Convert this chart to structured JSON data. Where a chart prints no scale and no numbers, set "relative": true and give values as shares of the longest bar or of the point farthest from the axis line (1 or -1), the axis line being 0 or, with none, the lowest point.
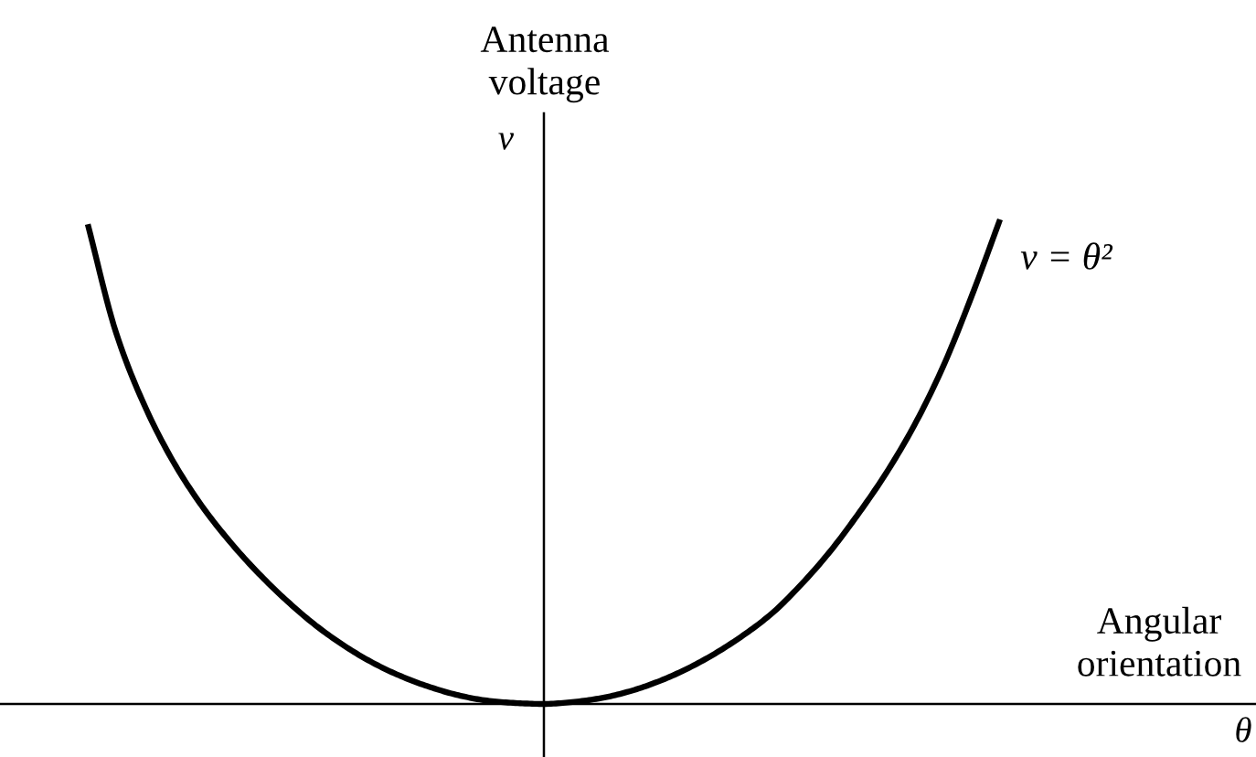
{
  "chart_data": {
    "type": "line",
    "relative": true,
    "xlabel": "Angular\norientation",
    "ylabel": "Antenna\nvoltage",
    "annotations": [
      "v",
      "θ"
    ],
    "categories": [
      null,
      null,
      null,
      null,
      null,
      null,
      null,
      null,
      null,
      null,
      null,
      null,
      null,
      null,
      null,
      null,
      null,
      null,
      null,
      null,
      null,
      null,
      null,
      null,
      null,
      null,
      null,
      null,
      null,
      null,
      null,
      null,
      null
    ],
    "series": [
      {
        "name": "v = θ²",
        "color": "#000000",
        "values": [
          0.99,
          0.765,
          0.615,
          0.5,
          0.409,
          0.334,
          0.269,
          0.212,
          0.162,
          0.12,
          0.085,
          0.057,
          0.035,
          0.018,
          0.007,
          0.002,
          0,
          0.004,
          0.012,
          0.026,
          0.046,
          0.072,
          0.104,
          0.142,
          0.187,
          0.245,
          0.312,
          0.39,
          0.476,
          0.576,
          0.696,
          0.841,
          1
        ]
      }
    ]
  }
}
